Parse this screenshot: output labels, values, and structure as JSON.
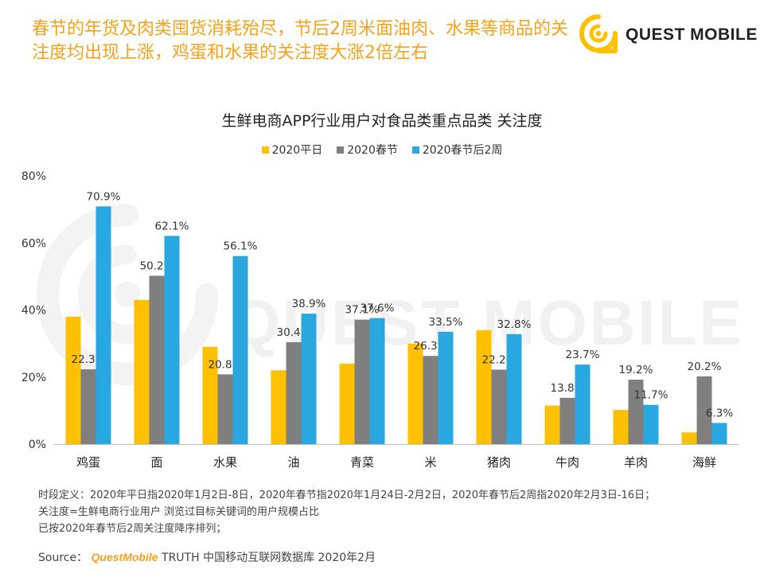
{
  "headline": "春节的年货及肉类囤货消耗殆尽，节后2周米面油肉、水果等商品的关注度均出现上涨，鸡蛋和水果的关注度大涨2倍左右",
  "brand": {
    "name": "QUEST MOBILE",
    "watermark": "QUEST MOBILE"
  },
  "colors": {
    "accent": "#f5a21b",
    "series1": "#ffc000",
    "series2": "#7f7f7f",
    "series3": "#29a7e0"
  },
  "chart_data": {
    "type": "bar",
    "title": "生鲜电商APP行业用户对食品类重点品类 关注度",
    "categories": [
      "鸡蛋",
      "面",
      "水果",
      "油",
      "青菜",
      "米",
      "猪肉",
      "牛肉",
      "羊肉",
      "海鲜"
    ],
    "series": [
      {
        "name": "2020平日",
        "values": [
          38.0,
          43.0,
          29.0,
          22.0,
          24.0,
          30.0,
          34.0,
          11.5,
          10.2,
          3.5
        ],
        "labels": [
          "",
          "",
          "",
          "",
          "",
          "",
          "",
          "",
          "",
          ""
        ]
      },
      {
        "name": "2020春节",
        "values": [
          22.3,
          50.2,
          20.8,
          30.4,
          37.1,
          26.3,
          22.2,
          13.8,
          19.2,
          20.2
        ],
        "labels": [
          "22.3%",
          "50.2%",
          "20.8%",
          "30.4%",
          "37.1%",
          "26.3%",
          "22.2%",
          "13.8%",
          "19.2%",
          "20.2%"
        ]
      },
      {
        "name": "2020春节后2周",
        "values": [
          70.9,
          62.1,
          56.1,
          38.9,
          37.6,
          33.5,
          32.8,
          23.7,
          11.7,
          6.3
        ],
        "labels": [
          "70.9%",
          "62.1%",
          "56.1%",
          "38.9%",
          "37.6%",
          "33.5%",
          "32.8%",
          "23.7%",
          "11.7%",
          "6.3%"
        ]
      }
    ],
    "yticks": [
      "0%",
      "20%",
      "40%",
      "60%",
      "80%"
    ],
    "ytick_values": [
      0,
      20,
      40,
      60,
      80
    ],
    "ylim": [
      0,
      80
    ],
    "xlabel": "",
    "ylabel": "",
    "legend_position": "top-center",
    "grid": false
  },
  "footnotes": [
    "时段定义：2020年平日指2020年1月2日-8日，2020年春节指2020年1月24日-2月2日，2020年春节后2周指2020年2月3日-16日；",
    "关注度=生鲜电商行业用户 浏览过目标关键词的用户规模占比",
    "已按2020年春节后2周关注度降序排列；"
  ],
  "source": {
    "label": "Source：",
    "brand": "QuestMobile",
    "text": " TRUTH 中国移动互联网数据库 2020年2月"
  }
}
